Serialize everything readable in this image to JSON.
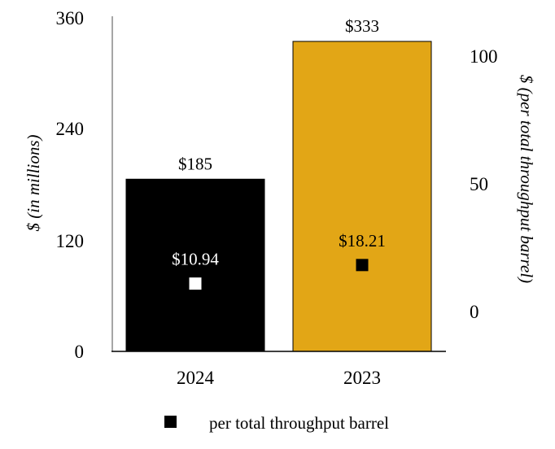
{
  "chart_data": {
    "type": "bar",
    "categories": [
      "2024",
      "2023"
    ],
    "series": [
      {
        "values": [
          185,
          333
        ],
        "value_labels": [
          "$185",
          "$333"
        ],
        "axis": "left",
        "colors": [
          "#000000",
          "#E2A616"
        ]
      },
      {
        "name": "per total throughput barrel",
        "values": [
          10.94,
          18.21
        ],
        "value_labels": [
          "$10.94",
          "$18.21"
        ],
        "axis": "right",
        "marker": "square",
        "marker_colors": [
          "#ffffff",
          "#000000"
        ],
        "label_colors": [
          "#ffffff",
          "#000000"
        ]
      }
    ],
    "ylabel": "$ (in millions)",
    "ylim": [
      0,
      360
    ],
    "yticks": [
      "0",
      "120",
      "240",
      "360"
    ],
    "y2label": "$ (per total throughput barrel)",
    "y2lim": [
      -15,
      115
    ],
    "y2ticks": [
      "0",
      "50",
      "100"
    ],
    "legend": {
      "placement": "bottom",
      "entries": [
        "per total throughput barrel"
      ]
    },
    "grid": false
  }
}
